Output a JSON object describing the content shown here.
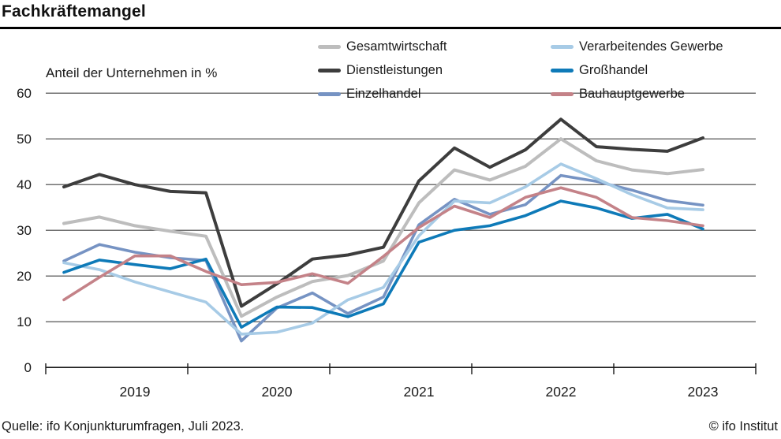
{
  "header": {
    "title": "Fachkräftemangel"
  },
  "chart": {
    "axis_label": "Anteil der Unternehmen in %",
    "legend_order": [
      0,
      3,
      1,
      4,
      2,
      5
    ]
  },
  "chart_data": {
    "type": "line",
    "title": "Fachkräftemangel",
    "ylabel": "Anteil der Unternehmen in %",
    "ylim": [
      0,
      60
    ],
    "y_ticks": [
      60,
      50,
      40,
      30,
      20,
      10,
      0
    ],
    "grid": true,
    "legend_position": "top",
    "x_year_labels": [
      "2019",
      "2020",
      "2021",
      "2022",
      "2023"
    ],
    "quarters": [
      "2019Q1",
      "2019Q2",
      "2019Q3",
      "2019Q4",
      "2020Q1",
      "2020Q2",
      "2020Q3",
      "2020Q4",
      "2021Q1",
      "2021Q2",
      "2021Q3",
      "2021Q4",
      "2022Q1",
      "2022Q2",
      "2022Q3",
      "2022Q4",
      "2023Q1",
      "2023Q2",
      "2023Q3"
    ],
    "series": [
      {
        "name": "Gesamtwirtschaft",
        "color": "#bdbdbd",
        "width": 4,
        "values": [
          31.5,
          32.9,
          31.0,
          29.8,
          28.7,
          11.2,
          15.4,
          18.8,
          20.1,
          23.3,
          36.0,
          43.2,
          41.0,
          44.0,
          50.0,
          45.2,
          43.2,
          42.4,
          43.3
        ]
      },
      {
        "name": "Dienstleistungen",
        "color": "#3d3d3d",
        "width": 4,
        "values": [
          39.5,
          42.2,
          40.0,
          38.5,
          38.2,
          13.4,
          18.3,
          23.7,
          24.6,
          26.3,
          40.8,
          48.0,
          43.8,
          47.6,
          54.3,
          48.3,
          47.7,
          47.3,
          50.2
        ]
      },
      {
        "name": "Einzelhandel",
        "color": "#7693c3",
        "width": 3.6,
        "values": [
          23.3,
          26.9,
          25.2,
          24.0,
          23.4,
          5.8,
          13.0,
          16.3,
          11.8,
          15.4,
          31.2,
          36.8,
          33.5,
          35.6,
          42.0,
          40.7,
          38.8,
          36.5,
          35.5
        ]
      },
      {
        "name": "Verarbeitendes Gewerbe",
        "color": "#a7cbe6",
        "width": 3.6,
        "values": [
          22.9,
          21.4,
          18.7,
          16.5,
          14.3,
          7.3,
          7.7,
          9.7,
          14.8,
          17.5,
          28.8,
          36.4,
          36.0,
          39.5,
          44.5,
          41.3,
          37.8,
          34.9,
          34.5
        ]
      },
      {
        "name": "Großhandel",
        "color": "#0e7ab8",
        "width": 3.6,
        "values": [
          20.8,
          23.5,
          22.5,
          21.6,
          23.7,
          8.8,
          13.2,
          13.1,
          11.1,
          13.9,
          27.4,
          30.0,
          31.0,
          33.2,
          36.4,
          34.9,
          32.6,
          33.5,
          30.3
        ]
      },
      {
        "name": "Bauhauptgewerbe",
        "color": "#c48288",
        "width": 3.6,
        "values": [
          14.8,
          19.7,
          24.4,
          24.4,
          21.0,
          18.1,
          18.6,
          20.5,
          18.4,
          24.3,
          30.6,
          35.3,
          32.8,
          37.2,
          39.3,
          37.2,
          32.8,
          32.1,
          31.0
        ]
      }
    ]
  },
  "footer": {
    "source": "Quelle: ifo Konjunkturumfragen, Juli 2023.",
    "copyright": "© ifo Institut"
  }
}
